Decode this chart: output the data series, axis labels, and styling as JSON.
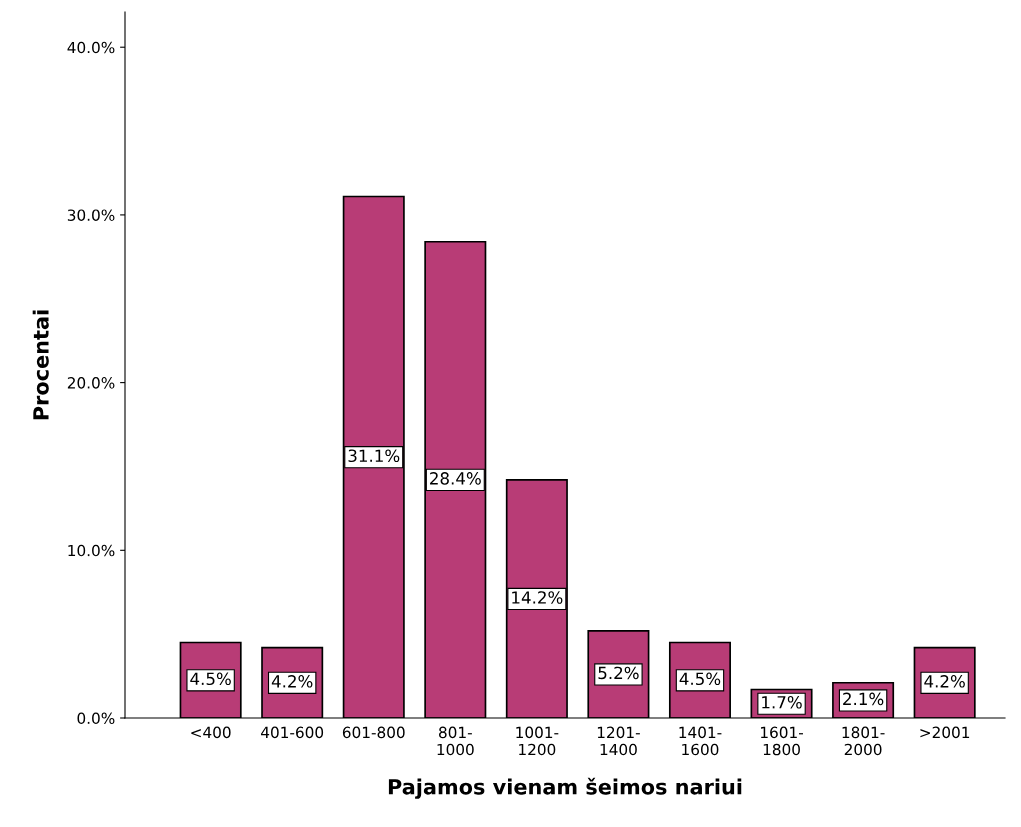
{
  "chart_data": {
    "type": "bar",
    "xlabel": "Pajamos vienam šeimos nariui",
    "ylabel": "Procentai",
    "categories": [
      "<400",
      "401-600",
      "601-800",
      "801-\n1000",
      "1001-\n1200",
      "1201-\n1400",
      "1401-\n1600",
      "1601-\n1800",
      "1801-\n2000",
      ">2001"
    ],
    "values": [
      4.5,
      4.2,
      31.1,
      28.4,
      14.2,
      5.2,
      4.5,
      1.7,
      2.1,
      4.2
    ],
    "value_labels": [
      "4.5%",
      "4.2%",
      "31.1%",
      "28.4%",
      "14.2%",
      "5.2%",
      "4.5%",
      "1.7%",
      "2.1%",
      "4.2%"
    ],
    "color": "#b83c76",
    "ylim": [
      0,
      42.1
    ],
    "yticks": [
      {
        "value": 0,
        "label": "0.0%"
      },
      {
        "value": 10,
        "label": "10.0%"
      },
      {
        "value": 20,
        "label": "20.0%"
      },
      {
        "value": 30,
        "label": "30.0%"
      },
      {
        "value": 40,
        "label": "40.0%"
      }
    ],
    "grid": false
  }
}
